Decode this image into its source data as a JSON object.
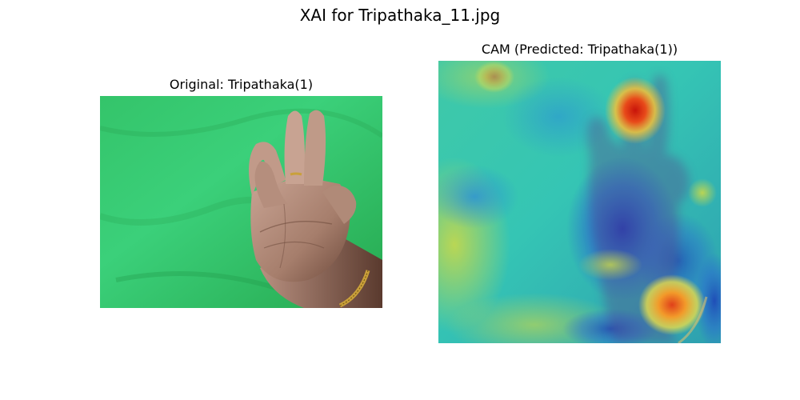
{
  "figure": {
    "suptitle": "XAI for Tripathaka_11.jpg"
  },
  "panels": [
    {
      "title": "Original: Tripathaka(1)"
    },
    {
      "title": "CAM (Predicted: Tripathaka(1))"
    }
  ],
  "colors": {
    "background": "#ffffff",
    "green_screen": "#2fbf63",
    "skin": "#b08a78",
    "bracelet": "#c9a03a"
  },
  "icons": []
}
